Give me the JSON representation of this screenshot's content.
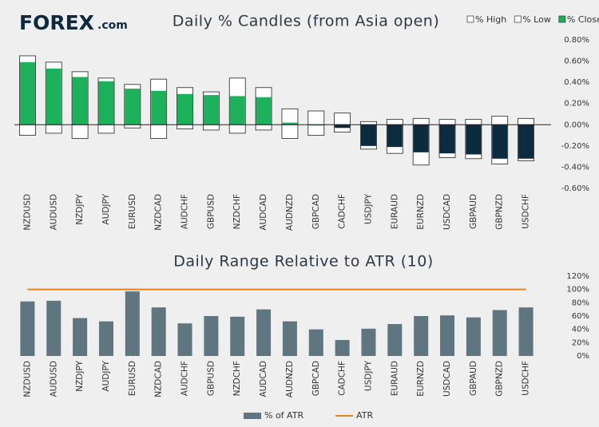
{
  "logo": {
    "name": "FOREX",
    "suffix": ".com"
  },
  "chart_data": [
    {
      "type": "candle",
      "title": "Daily % Candles (from Asia open)",
      "categories": [
        "NZDUSD",
        "AUDUSD",
        "NZDJPY",
        "AUDJPY",
        "EURUSD",
        "NZDCAD",
        "AUDCHF",
        "GBPUSD",
        "NZDCHF",
        "AUDCAD",
        "AUDNZD",
        "GBPCAD",
        "CADCHF",
        "USDJPY",
        "EURAUD",
        "EURNZD",
        "USDCAD",
        "GBPAUD",
        "GBPNZD",
        "USDCHF"
      ],
      "series": [
        {
          "name": "% High",
          "color": "#ffffff",
          "values": [
            0.65,
            0.59,
            0.5,
            0.44,
            0.38,
            0.43,
            0.35,
            0.31,
            0.44,
            0.35,
            0.15,
            0.13,
            0.11,
            0.03,
            0.05,
            0.06,
            0.05,
            0.05,
            0.08,
            0.06
          ]
        },
        {
          "name": "% Low",
          "color": "#ffffff",
          "values": [
            -0.1,
            -0.08,
            -0.13,
            -0.08,
            -0.03,
            -0.13,
            -0.04,
            -0.05,
            -0.08,
            -0.05,
            -0.13,
            -0.1,
            -0.07,
            -0.23,
            -0.27,
            -0.38,
            -0.31,
            -0.32,
            -0.37,
            -0.34
          ]
        },
        {
          "name": "% Close",
          "color": "#1cb15a",
          "negative_color": "#0d2b3e",
          "values": [
            0.59,
            0.53,
            0.45,
            0.41,
            0.34,
            0.32,
            0.29,
            0.28,
            0.27,
            0.26,
            0.02,
            0.0,
            -0.03,
            -0.2,
            -0.21,
            -0.26,
            -0.27,
            -0.28,
            -0.32,
            -0.32
          ]
        }
      ],
      "ylim": [
        -0.6,
        0.8
      ],
      "yticks": [
        {
          "value": 0.8,
          "label": "0.80%"
        },
        {
          "value": 0.6,
          "label": "0.60%"
        },
        {
          "value": 0.4,
          "label": "0.40%"
        },
        {
          "value": 0.2,
          "label": "0.20%"
        },
        {
          "value": 0,
          "label": "0.00%"
        },
        {
          "value": -0.2,
          "label": "-0.20%"
        },
        {
          "value": -0.4,
          "label": "-0.40%"
        },
        {
          "value": -0.6,
          "label": "-0.60%"
        }
      ],
      "grid": false,
      "legend": "top-right"
    },
    {
      "type": "bar",
      "title": "Daily Range Relative to ATR (10)",
      "categories": [
        "NZDUSD",
        "AUDUSD",
        "NZDJPY",
        "AUDJPY",
        "EURUSD",
        "NZDCAD",
        "AUDCHF",
        "GBPUSD",
        "NZDCHF",
        "AUDCAD",
        "AUDNZD",
        "GBPCAD",
        "CADCHF",
        "USDJPY",
        "EURAUD",
        "EURNZD",
        "USDCAD",
        "GBPAUD",
        "GBPNZD",
        "USDCHF"
      ],
      "series": [
        {
          "name": "% of ATR",
          "color": "#5f7580",
          "values": [
            82,
            83,
            57,
            52,
            97,
            73,
            49,
            60,
            59,
            70,
            52,
            40,
            24,
            41,
            48,
            60,
            61,
            58,
            69,
            73
          ]
        },
        {
          "name": "ATR",
          "color": "#e8801e",
          "kind": "line",
          "values": [
            100,
            100,
            100,
            100,
            100,
            100,
            100,
            100,
            100,
            100,
            100,
            100,
            100,
            100,
            100,
            100,
            100,
            100,
            100,
            100
          ]
        }
      ],
      "ylim": [
        0,
        120
      ],
      "yticks": [
        {
          "value": 0,
          "label": "0%"
        },
        {
          "value": 20,
          "label": "20%"
        },
        {
          "value": 40,
          "label": "40%"
        },
        {
          "value": 60,
          "label": "60%"
        },
        {
          "value": 80,
          "label": "80%"
        },
        {
          "value": 100,
          "label": "100%"
        },
        {
          "value": 120,
          "label": "120%"
        }
      ],
      "grid": false,
      "legend": "bottom"
    }
  ]
}
